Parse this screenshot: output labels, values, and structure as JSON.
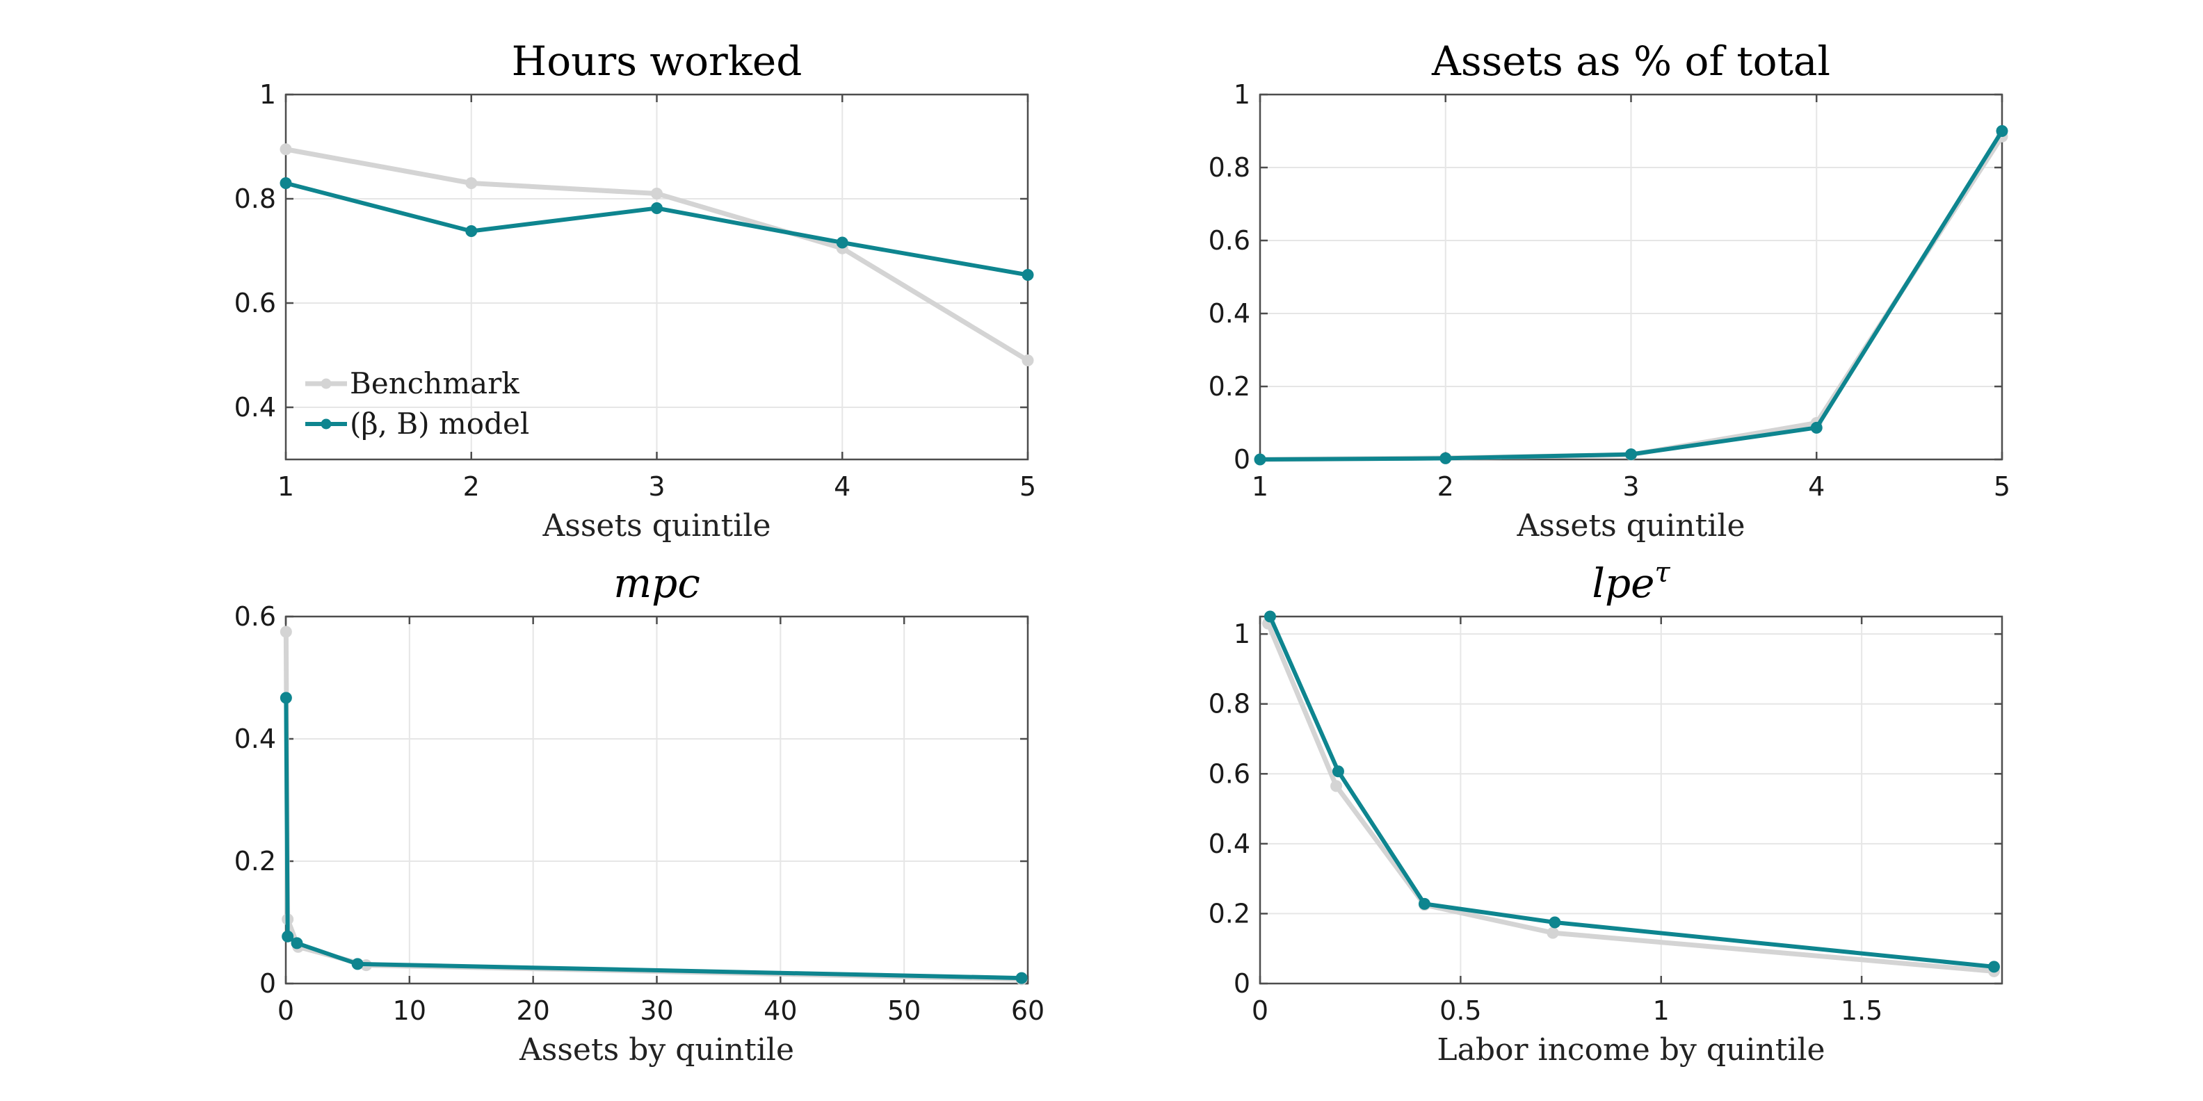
{
  "colors": {
    "benchmark": "#d4d4d4",
    "model": "#0e858f"
  },
  "legend": {
    "entries": [
      "Benchmark",
      "(β, B) model"
    ],
    "location": "lower-left of first panel"
  },
  "chart_data": [
    {
      "type": "line",
      "title": "Hours worked",
      "title_italic": false,
      "xlabel": "Assets quintile",
      "ylabel": "",
      "xlim": [
        1,
        5
      ],
      "ylim": [
        0.3,
        1
      ],
      "xticks": [
        1,
        2,
        3,
        4,
        5
      ],
      "xtick_labels": [
        "1",
        "2",
        "3",
        "4",
        "5"
      ],
      "yticks": [
        0.4,
        0.6,
        0.8,
        1
      ],
      "ytick_labels": [
        "0.4",
        "0.6",
        "0.8",
        "1"
      ],
      "grid": true,
      "legend": "bottom-left",
      "series": [
        {
          "name": "Benchmark",
          "x": [
            1,
            2,
            3,
            4,
            5
          ],
          "y": [
            0.895,
            0.83,
            0.81,
            0.705,
            0.49
          ]
        },
        {
          "name": "(β, B) model",
          "x": [
            1,
            2,
            3,
            4,
            5
          ],
          "y": [
            0.83,
            0.738,
            0.782,
            0.716,
            0.654
          ]
        }
      ]
    },
    {
      "type": "line",
      "title": "Assets as % of total",
      "title_italic": false,
      "xlabel": "Assets quintile",
      "ylabel": "",
      "xlim": [
        1,
        5
      ],
      "ylim": [
        0,
        1
      ],
      "xticks": [
        1,
        2,
        3,
        4,
        5
      ],
      "xtick_labels": [
        "1",
        "2",
        "3",
        "4",
        "5"
      ],
      "yticks": [
        0,
        0.2,
        0.4,
        0.6,
        0.8,
        1
      ],
      "ytick_labels": [
        "0",
        "0.2",
        "0.4",
        "0.6",
        "0.8",
        "1"
      ],
      "grid": true,
      "series": [
        {
          "name": "Benchmark",
          "x": [
            1,
            2,
            3,
            4,
            5
          ],
          "y": [
            0.0,
            0.004,
            0.013,
            0.1,
            0.885
          ]
        },
        {
          "name": "(β, B) model",
          "x": [
            1,
            2,
            3,
            4,
            5
          ],
          "y": [
            0.0,
            0.003,
            0.014,
            0.087,
            0.9
          ]
        }
      ]
    },
    {
      "type": "line",
      "title": "mpc",
      "title_italic": true,
      "xlabel": "Assets by quintile",
      "ylabel": "",
      "xlim": [
        0,
        60
      ],
      "ylim": [
        0,
        0.6
      ],
      "xticks": [
        0,
        10,
        20,
        30,
        40,
        50,
        60
      ],
      "xtick_labels": [
        "0",
        "10",
        "20",
        "30",
        "40",
        "50",
        "60"
      ],
      "yticks": [
        0,
        0.2,
        0.4,
        0.6
      ],
      "ytick_labels": [
        "0",
        "0.2",
        "0.4",
        "0.6"
      ],
      "grid": true,
      "series": [
        {
          "name": "Benchmark",
          "x": [
            0.02,
            0.15,
            1.0,
            6.5,
            59.5
          ],
          "y": [
            0.575,
            0.105,
            0.06,
            0.03,
            0.007
          ]
        },
        {
          "name": "(β, B) model",
          "x": [
            0.02,
            0.15,
            0.9,
            5.8,
            59.5
          ],
          "y": [
            0.467,
            0.077,
            0.066,
            0.032,
            0.009
          ]
        }
      ]
    },
    {
      "type": "line",
      "title": "lpe",
      "title_superscript": "τ",
      "title_italic": true,
      "xlabel": "Labor income by quintile",
      "ylabel": "",
      "xlim": [
        0,
        1.85
      ],
      "ylim": [
        0,
        1.05
      ],
      "xticks": [
        0,
        0.5,
        1,
        1.5
      ],
      "xtick_labels": [
        "0",
        "0.5",
        "1",
        "1.5"
      ],
      "yticks": [
        0,
        0.2,
        0.4,
        0.6,
        0.8,
        1
      ],
      "ytick_labels": [
        "0",
        "0.2",
        "0.4",
        "0.6",
        "0.8",
        "1"
      ],
      "grid": true,
      "series": [
        {
          "name": "Benchmark",
          "x": [
            0.02,
            0.19,
            0.41,
            0.73,
            1.83
          ],
          "y": [
            1.03,
            0.565,
            0.225,
            0.145,
            0.035
          ]
        },
        {
          "name": "(β, B) model",
          "x": [
            0.025,
            0.195,
            0.41,
            0.735,
            1.83
          ],
          "y": [
            1.05,
            0.607,
            0.228,
            0.175,
            0.048
          ]
        }
      ]
    }
  ]
}
